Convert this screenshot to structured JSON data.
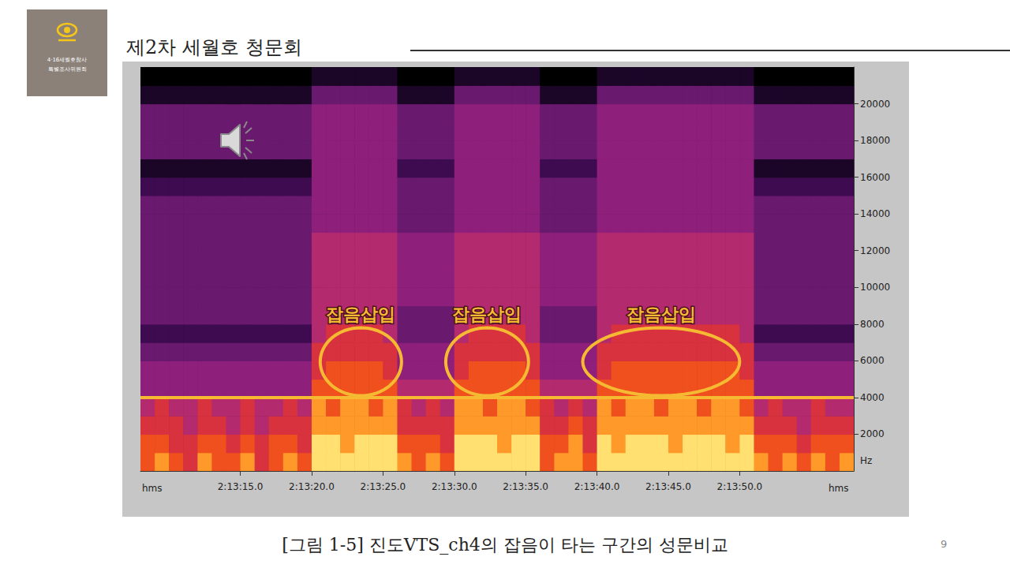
{
  "slide": {
    "title": "제2차 세월호 청문회",
    "logo_text": [
      "4·16세월호참사",
      "특별조사위원회"
    ],
    "caption": "[그림 1-5] 진도VTS_ch4의 잡음이 타는 구간의 성문비교",
    "page_number": 9
  },
  "chart_data": {
    "type": "heatmap",
    "xlabel": "hms",
    "ylabel": "Hz",
    "xlim": [
      7988,
      8038
    ],
    "ylim": [
      0,
      22000
    ],
    "xticks": [
      {
        "value": 7995,
        "label": "2:13:15.0"
      },
      {
        "value": 8000,
        "label": "2:13:20.0"
      },
      {
        "value": 8005,
        "label": "2:13:25.0"
      },
      {
        "value": 8010,
        "label": "2:13:30.0"
      },
      {
        "value": 8015,
        "label": "2:13:35.0"
      },
      {
        "value": 8020,
        "label": "2:13:40.0"
      },
      {
        "value": 8025,
        "label": "2:13:45.0"
      },
      {
        "value": 8030,
        "label": "2:13:50.0"
      }
    ],
    "yticks": [
      2000,
      4000,
      6000,
      8000,
      10000,
      12000,
      14000,
      16000,
      18000,
      20000
    ],
    "grid": false,
    "color": "#f5b932",
    "color_range": [
      0,
      9
    ],
    "x_bins": [
      7988,
      7989,
      7990,
      7991,
      7992,
      7993,
      7994,
      7995,
      7996,
      7997,
      7998,
      7999,
      8000,
      8001,
      8002,
      8003,
      8004,
      8005,
      8006,
      8007,
      8008,
      8009,
      8010,
      8011,
      8012,
      8013,
      8014,
      8015,
      8016,
      8017,
      8018,
      8019,
      8020,
      8021,
      8022,
      8023,
      8024,
      8025,
      8026,
      8027,
      8028,
      8029,
      8030,
      8031,
      8032,
      8033,
      8034,
      8035,
      8036,
      8037,
      8038
    ],
    "y_bins": [
      0,
      1000,
      2000,
      3000,
      4000,
      5000,
      6000,
      7000,
      8000,
      9000,
      10000,
      11000,
      12000,
      13000,
      14000,
      15000,
      16000,
      17000,
      18000,
      19000,
      20000,
      21000,
      22000
    ],
    "cells": [
      [
        7,
        8,
        7,
        6,
        8,
        7,
        7,
        8,
        6,
        7,
        8,
        7,
        9,
        9,
        9,
        9,
        9,
        9,
        8,
        7,
        8,
        7,
        9,
        9,
        9,
        9,
        9,
        9,
        7,
        8,
        8,
        7,
        9,
        9,
        9,
        9,
        9,
        9,
        9,
        9,
        9,
        9,
        9,
        8,
        7,
        8,
        7,
        8,
        7,
        8
      ],
      [
        7,
        7,
        6,
        6,
        7,
        7,
        6,
        7,
        6,
        7,
        7,
        6,
        9,
        9,
        8,
        9,
        9,
        9,
        7,
        7,
        7,
        6,
        9,
        9,
        9,
        8,
        9,
        9,
        7,
        7,
        8,
        6,
        9,
        8,
        9,
        9,
        9,
        8,
        9,
        9,
        9,
        8,
        9,
        7,
        7,
        7,
        6,
        7,
        7,
        7
      ],
      [
        6,
        6,
        6,
        5,
        6,
        6,
        5,
        6,
        5,
        6,
        6,
        6,
        8,
        8,
        8,
        8,
        8,
        8,
        6,
        6,
        6,
        6,
        8,
        8,
        8,
        8,
        8,
        8,
        6,
        6,
        7,
        6,
        8,
        8,
        8,
        8,
        8,
        8,
        8,
        8,
        8,
        8,
        8,
        6,
        6,
        6,
        5,
        6,
        6,
        6
      ],
      [
        5,
        6,
        5,
        5,
        6,
        5,
        5,
        6,
        5,
        5,
        6,
        5,
        8,
        7,
        8,
        8,
        7,
        8,
        6,
        5,
        6,
        5,
        8,
        8,
        7,
        8,
        8,
        7,
        6,
        5,
        6,
        5,
        8,
        7,
        8,
        8,
        7,
        8,
        8,
        7,
        8,
        8,
        7,
        5,
        6,
        5,
        5,
        6,
        5,
        5
      ],
      [
        4,
        4,
        4,
        4,
        4,
        4,
        4,
        4,
        4,
        4,
        4,
        4,
        7,
        7,
        7,
        7,
        7,
        7,
        5,
        5,
        5,
        5,
        7,
        7,
        7,
        7,
        7,
        7,
        5,
        5,
        5,
        5,
        7,
        7,
        7,
        7,
        7,
        7,
        7,
        7,
        7,
        7,
        7,
        4,
        4,
        4,
        4,
        4,
        4,
        4
      ],
      [
        4,
        4,
        4,
        4,
        4,
        4,
        4,
        4,
        4,
        4,
        4,
        4,
        6,
        7,
        7,
        7,
        7,
        6,
        4,
        4,
        4,
        4,
        6,
        7,
        7,
        7,
        7,
        6,
        4,
        4,
        4,
        4,
        6,
        7,
        7,
        7,
        7,
        7,
        7,
        7,
        7,
        7,
        6,
        4,
        4,
        4,
        4,
        4,
        4,
        4
      ],
      [
        3,
        3,
        3,
        3,
        3,
        3,
        3,
        3,
        3,
        3,
        3,
        3,
        6,
        6,
        6,
        6,
        6,
        6,
        4,
        4,
        4,
        4,
        6,
        6,
        6,
        6,
        6,
        6,
        4,
        4,
        4,
        4,
        6,
        6,
        6,
        6,
        6,
        6,
        6,
        6,
        6,
        6,
        6,
        3,
        3,
        3,
        3,
        3,
        3,
        3
      ],
      [
        2,
        2,
        2,
        2,
        2,
        2,
        2,
        2,
        2,
        2,
        2,
        2,
        5,
        6,
        6,
        6,
        6,
        5,
        3,
        3,
        3,
        3,
        5,
        6,
        6,
        6,
        6,
        5,
        3,
        3,
        3,
        3,
        5,
        6,
        6,
        6,
        6,
        6,
        6,
        6,
        6,
        6,
        5,
        2,
        2,
        2,
        2,
        2,
        2,
        2
      ],
      [
        3,
        3,
        3,
        3,
        3,
        3,
        3,
        3,
        3,
        3,
        3,
        3,
        5,
        5,
        5,
        5,
        5,
        5,
        3,
        3,
        3,
        3,
        5,
        5,
        5,
        5,
        5,
        5,
        3,
        3,
        3,
        3,
        5,
        5,
        5,
        5,
        5,
        5,
        5,
        5,
        5,
        5,
        5,
        3,
        3,
        3,
        3,
        3,
        3,
        3
      ],
      [
        3,
        3,
        3,
        3,
        3,
        3,
        3,
        3,
        3,
        3,
        3,
        3,
        5,
        5,
        5,
        5,
        5,
        5,
        4,
        4,
        4,
        4,
        5,
        5,
        5,
        5,
        5,
        5,
        4,
        4,
        4,
        4,
        5,
        5,
        5,
        5,
        5,
        5,
        5,
        5,
        5,
        5,
        5,
        3,
        3,
        3,
        3,
        3,
        3,
        3
      ],
      [
        3,
        3,
        3,
        3,
        3,
        3,
        3,
        3,
        3,
        3,
        3,
        3,
        5,
        5,
        5,
        5,
        5,
        5,
        4,
        4,
        4,
        4,
        5,
        5,
        5,
        5,
        5,
        5,
        4,
        4,
        4,
        4,
        5,
        5,
        5,
        5,
        5,
        5,
        5,
        5,
        5,
        5,
        5,
        3,
        3,
        3,
        3,
        3,
        3,
        3
      ],
      [
        3,
        3,
        3,
        3,
        3,
        3,
        3,
        3,
        3,
        3,
        3,
        3,
        5,
        5,
        5,
        5,
        5,
        5,
        4,
        4,
        4,
        4,
        5,
        5,
        5,
        5,
        5,
        5,
        4,
        4,
        4,
        4,
        5,
        5,
        5,
        5,
        5,
        5,
        5,
        5,
        5,
        5,
        5,
        3,
        3,
        3,
        3,
        3,
        3,
        3
      ],
      [
        3,
        3,
        3,
        3,
        3,
        3,
        3,
        3,
        3,
        3,
        3,
        3,
        5,
        5,
        5,
        5,
        5,
        5,
        4,
        4,
        4,
        4,
        5,
        5,
        5,
        5,
        5,
        5,
        4,
        4,
        4,
        4,
        5,
        5,
        5,
        5,
        5,
        5,
        5,
        5,
        5,
        5,
        5,
        3,
        3,
        3,
        3,
        3,
        3,
        3
      ],
      [
        3,
        3,
        3,
        3,
        3,
        3,
        3,
        3,
        3,
        3,
        3,
        3,
        4,
        4,
        4,
        4,
        4,
        4,
        3,
        3,
        3,
        3,
        4,
        4,
        4,
        4,
        4,
        4,
        3,
        3,
        3,
        3,
        4,
        4,
        4,
        4,
        4,
        4,
        4,
        4,
        4,
        4,
        4,
        3,
        3,
        3,
        3,
        3,
        3,
        3
      ],
      [
        3,
        3,
        3,
        3,
        3,
        3,
        3,
        3,
        3,
        3,
        3,
        3,
        4,
        4,
        4,
        4,
        4,
        4,
        3,
        3,
        3,
        3,
        4,
        4,
        4,
        4,
        4,
        4,
        3,
        3,
        3,
        3,
        4,
        4,
        4,
        4,
        4,
        4,
        4,
        4,
        4,
        4,
        4,
        3,
        3,
        3,
        3,
        3,
        3,
        3
      ],
      [
        2,
        2,
        2,
        2,
        2,
        2,
        2,
        2,
        2,
        2,
        2,
        2,
        4,
        4,
        4,
        4,
        4,
        4,
        3,
        3,
        3,
        3,
        4,
        4,
        4,
        4,
        4,
        4,
        3,
        3,
        3,
        3,
        4,
        4,
        4,
        4,
        4,
        4,
        4,
        4,
        4,
        4,
        4,
        2,
        2,
        2,
        2,
        2,
        2,
        2
      ],
      [
        1,
        1,
        1,
        1,
        1,
        1,
        1,
        1,
        1,
        1,
        1,
        1,
        4,
        4,
        4,
        4,
        4,
        4,
        2,
        2,
        2,
        2,
        4,
        4,
        4,
        4,
        4,
        4,
        2,
        2,
        2,
        2,
        4,
        4,
        4,
        4,
        4,
        4,
        4,
        4,
        4,
        4,
        4,
        1,
        1,
        1,
        1,
        1,
        1,
        1
      ],
      [
        3,
        3,
        3,
        3,
        3,
        3,
        3,
        3,
        3,
        3,
        3,
        3,
        4,
        4,
        4,
        4,
        4,
        4,
        3,
        3,
        3,
        3,
        4,
        4,
        4,
        4,
        4,
        4,
        3,
        3,
        3,
        3,
        4,
        4,
        4,
        4,
        4,
        4,
        4,
        4,
        4,
        4,
        4,
        3,
        3,
        3,
        3,
        3,
        3,
        3
      ],
      [
        3,
        3,
        3,
        3,
        3,
        3,
        3,
        3,
        3,
        3,
        3,
        3,
        4,
        4,
        4,
        4,
        4,
        4,
        3,
        3,
        3,
        3,
        4,
        4,
        4,
        4,
        4,
        4,
        3,
        3,
        3,
        3,
        4,
        4,
        4,
        4,
        4,
        4,
        4,
        4,
        4,
        4,
        4,
        3,
        3,
        3,
        3,
        3,
        3,
        3
      ],
      [
        3,
        3,
        3,
        3,
        3,
        3,
        3,
        3,
        3,
        3,
        3,
        3,
        4,
        4,
        4,
        4,
        4,
        4,
        3,
        3,
        3,
        3,
        4,
        4,
        4,
        4,
        4,
        4,
        3,
        3,
        3,
        3,
        4,
        4,
        4,
        4,
        4,
        4,
        4,
        4,
        4,
        4,
        4,
        3,
        3,
        3,
        3,
        3,
        3,
        3
      ],
      [
        1,
        1,
        1,
        1,
        1,
        1,
        1,
        1,
        1,
        1,
        1,
        1,
        3,
        3,
        3,
        3,
        3,
        3,
        1,
        1,
        1,
        1,
        3,
        3,
        3,
        3,
        3,
        3,
        1,
        1,
        1,
        1,
        3,
        3,
        3,
        3,
        3,
        3,
        3,
        3,
        3,
        3,
        3,
        1,
        1,
        1,
        1,
        1,
        1,
        1
      ],
      [
        0,
        0,
        0,
        0,
        0,
        0,
        0,
        0,
        0,
        0,
        0,
        0,
        1,
        1,
        1,
        1,
        1,
        1,
        0,
        0,
        0,
        0,
        1,
        1,
        1,
        1,
        1,
        1,
        0,
        0,
        0,
        0,
        1,
        1,
        1,
        1,
        1,
        1,
        1,
        1,
        1,
        1,
        1,
        0,
        0,
        0,
        0,
        0,
        0,
        0
      ]
    ],
    "reference_line": {
      "y": 4000
    },
    "annotations": [
      {
        "text": "잡음삽입",
        "x": [
          8000.6,
          8006.3
        ],
        "y": [
          4100,
          7800
        ]
      },
      {
        "text": "잡음삽입",
        "x": [
          8009.4,
          8015.2
        ],
        "y": [
          4100,
          7800
        ]
      },
      {
        "text": "잡음삽입",
        "x": [
          8019.0,
          8030.0
        ],
        "y": [
          4100,
          7800
        ]
      }
    ]
  }
}
